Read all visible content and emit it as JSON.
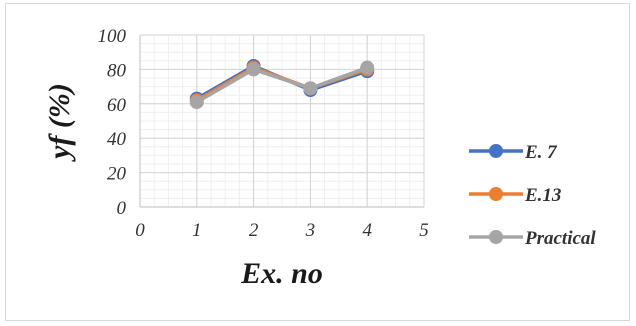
{
  "chart_data": {
    "type": "line",
    "title": "",
    "xlabel": "Ex. no",
    "ylabel": "yf (%)",
    "xlim": [
      0,
      5
    ],
    "ylim": [
      0,
      100
    ],
    "x_ticks": [
      "0",
      "1",
      "2",
      "3",
      "4",
      "5"
    ],
    "y_ticks": [
      "0",
      "20",
      "40",
      "60",
      "80",
      "100"
    ],
    "grid": true,
    "legend_position": "right",
    "x": [
      1,
      2,
      3,
      4
    ],
    "series": [
      {
        "name": "E. 7",
        "values": [
          63,
          82,
          68,
          79
        ],
        "color": "#4472c4"
      },
      {
        "name": "E.13",
        "values": [
          62,
          81,
          69,
          80
        ],
        "color": "#ed7d31"
      },
      {
        "name": "Practical",
        "values": [
          61,
          80,
          69,
          81
        ],
        "color": "#a5a5a5"
      }
    ]
  }
}
